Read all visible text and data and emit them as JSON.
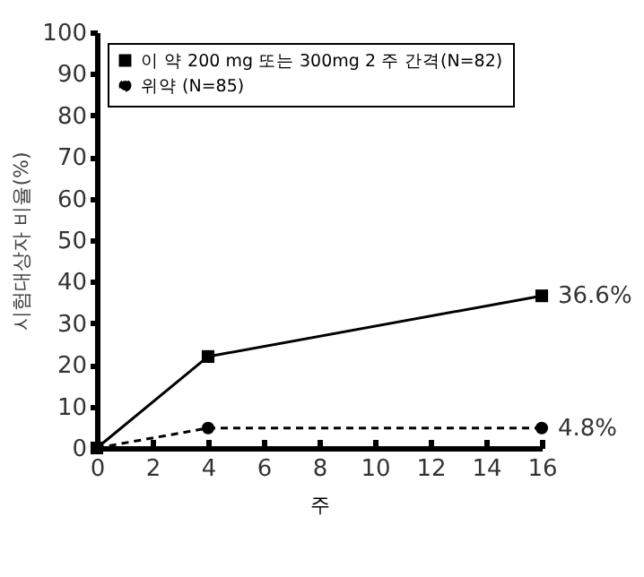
{
  "chart_data": {
    "type": "line",
    "xlabel": "주",
    "ylabel": "시험대상자 비율(%)",
    "x": [
      0,
      4,
      16
    ],
    "series": [
      {
        "name": "이 약 200 mg 또는 300mg 2 주 간격(N=82)",
        "color": "#000000",
        "values": [
          0,
          22,
          36.6
        ],
        "marker": "square",
        "line_style": "solid",
        "value_labels": [
          null,
          null,
          "36.6%"
        ]
      },
      {
        "name": "위약 (N=85)",
        "color": "#000000",
        "values": [
          0,
          4.8,
          4.8
        ],
        "marker": "circle",
        "line_style": "dashed",
        "value_labels": [
          null,
          null,
          "4.8%"
        ]
      }
    ],
    "xlim": [
      0,
      16
    ],
    "xticks": [
      0,
      2,
      4,
      6,
      8,
      10,
      12,
      14,
      16
    ],
    "ylim": [
      0,
      100
    ],
    "yticks": [
      0,
      10,
      20,
      30,
      40,
      50,
      60,
      70,
      80,
      90,
      100
    ],
    "grid": false,
    "legend": "top left"
  }
}
